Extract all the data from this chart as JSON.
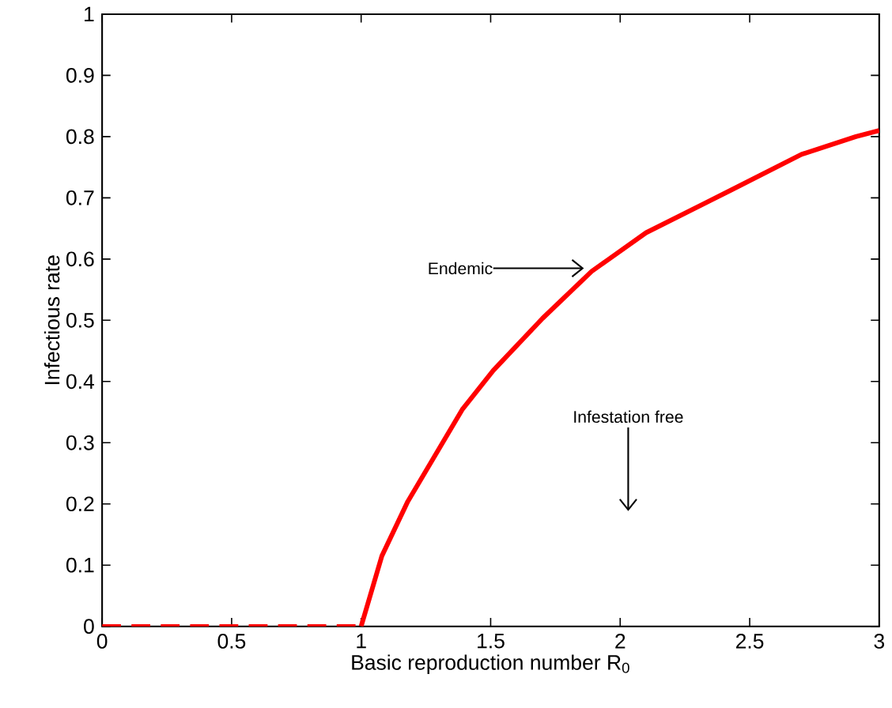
{
  "chart_data": {
    "type": "line",
    "xlabel": "Basic reproduction number R$_{0}$",
    "ylabel": "Infectious rate",
    "series": [
      {
        "color": "#ff0000",
        "line_style": "dashed",
        "x": [
          0,
          1
        ],
        "values": [
          0,
          0
        ]
      },
      {
        "color": "#ff0000",
        "line_style": "solid",
        "x": [
          1.0,
          1.08,
          1.18,
          1.39,
          1.51,
          1.7,
          1.89,
          2.1,
          2.43,
          2.7,
          2.91,
          3.0
        ],
        "values": [
          0,
          0.115,
          0.204,
          0.354,
          0.418,
          0.503,
          0.58,
          0.643,
          0.713,
          0.771,
          0.8,
          0.81
        ]
      }
    ],
    "xlim": [
      0,
      3
    ],
    "ylim": [
      0,
      1
    ],
    "xticks": [
      0,
      0.5,
      1,
      1.5,
      2,
      2.5,
      3
    ],
    "yticks": [
      0,
      0.1,
      0.2,
      0.3,
      0.4,
      0.5,
      0.6,
      0.7,
      0.8,
      0.9,
      1
    ],
    "grid": false,
    "marker": "none",
    "annotations": [
      {
        "text": "Endemic",
        "x": 1.86,
        "y": 0.585
      },
      "Infestation free"
    ]
  }
}
